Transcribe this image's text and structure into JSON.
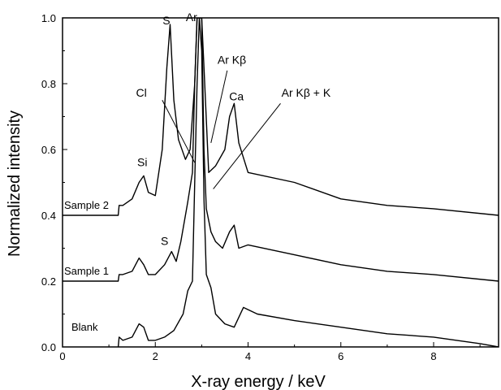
{
  "chart_data": {
    "type": "line",
    "title": "",
    "xlabel": "X-ray energy / keV",
    "ylabel": "Normalized intensity",
    "xlim": [
      0,
      9.4
    ],
    "ylim": [
      0,
      1.0
    ],
    "xticks": [
      "0",
      "2",
      "4",
      "6",
      "8"
    ],
    "yticks": [
      "0.0",
      "0.2",
      "0.4",
      "0.6",
      "0.8",
      "1.0"
    ],
    "grid": false,
    "legend": "none",
    "series": [
      {
        "name": "Blank",
        "x": [
          1.2,
          1.22,
          1.3,
          1.5,
          1.65,
          1.75,
          1.85,
          2.0,
          2.2,
          2.4,
          2.6,
          2.7,
          2.8,
          2.85,
          2.9,
          2.95,
          3.0,
          3.05,
          3.1,
          3.2,
          3.3,
          3.5,
          3.7,
          3.9,
          4.2,
          5.0,
          6.0,
          7.0,
          8.0,
          9.0,
          9.4
        ],
        "y": [
          0.0,
          0.03,
          0.02,
          0.03,
          0.07,
          0.06,
          0.02,
          0.02,
          0.03,
          0.05,
          0.1,
          0.17,
          0.2,
          0.5,
          0.8,
          1.0,
          0.9,
          0.45,
          0.22,
          0.18,
          0.1,
          0.07,
          0.06,
          0.12,
          0.1,
          0.08,
          0.06,
          0.04,
          0.03,
          0.01,
          0.0
        ]
      },
      {
        "name": "Sample 1",
        "x": [
          0.0,
          1.2,
          1.22,
          1.3,
          1.5,
          1.65,
          1.75,
          1.85,
          2.0,
          2.2,
          2.35,
          2.45,
          2.55,
          2.7,
          2.8,
          2.85,
          2.9,
          2.95,
          3.0,
          3.05,
          3.1,
          3.2,
          3.3,
          3.45,
          3.6,
          3.7,
          3.8,
          4.0,
          5.0,
          6.0,
          7.0,
          8.0,
          9.4
        ],
        "y": [
          0.2,
          0.2,
          0.22,
          0.22,
          0.23,
          0.27,
          0.25,
          0.22,
          0.22,
          0.25,
          0.29,
          0.26,
          0.32,
          0.44,
          0.53,
          0.8,
          1.0,
          1.0,
          1.0,
          0.6,
          0.42,
          0.35,
          0.32,
          0.3,
          0.35,
          0.37,
          0.3,
          0.31,
          0.28,
          0.25,
          0.23,
          0.22,
          0.2
        ]
      },
      {
        "name": "Sample 2",
        "x": [
          0.0,
          1.2,
          1.22,
          1.3,
          1.5,
          1.65,
          1.75,
          1.85,
          2.0,
          2.15,
          2.25,
          2.32,
          2.4,
          2.5,
          2.65,
          2.75,
          2.85,
          2.9,
          2.95,
          3.0,
          3.05,
          3.15,
          3.3,
          3.5,
          3.6,
          3.7,
          3.8,
          4.0,
          5.0,
          6.0,
          7.0,
          8.0,
          9.4
        ],
        "y": [
          0.4,
          0.4,
          0.43,
          0.43,
          0.45,
          0.5,
          0.52,
          0.47,
          0.46,
          0.6,
          0.85,
          0.98,
          0.75,
          0.63,
          0.57,
          0.6,
          0.8,
          1.0,
          1.0,
          1.0,
          0.85,
          0.53,
          0.55,
          0.6,
          0.7,
          0.74,
          0.62,
          0.53,
          0.5,
          0.45,
          0.43,
          0.42,
          0.4
        ]
      }
    ],
    "series_labels": [
      "Sample 2",
      "Sample 1",
      "Blank"
    ],
    "annotations": [
      {
        "text": "Si",
        "x": 1.72,
        "y": 0.55
      },
      {
        "text": "S",
        "x": 2.24,
        "y": 0.98
      },
      {
        "text": "Ar",
        "x": 2.78,
        "y": 0.99
      },
      {
        "text": "S",
        "x": 2.2,
        "y": 0.31
      },
      {
        "text": "Cl",
        "x": 1.7,
        "y": 0.76
      },
      {
        "text": "Ar Kβ",
        "x": 3.65,
        "y": 0.86
      },
      {
        "text": "Ca",
        "x": 3.75,
        "y": 0.75
      },
      {
        "text": "Ar Kβ + K",
        "x": 5.25,
        "y": 0.76
      }
    ],
    "leader_lines": [
      {
        "from": [
          2.15,
          0.75
        ],
        "to": [
          2.85,
          0.56
        ]
      },
      {
        "from": [
          3.55,
          0.84
        ],
        "to": [
          3.2,
          0.62
        ]
      },
      {
        "from": [
          4.7,
          0.74
        ],
        "to": [
          3.25,
          0.48
        ]
      }
    ]
  }
}
